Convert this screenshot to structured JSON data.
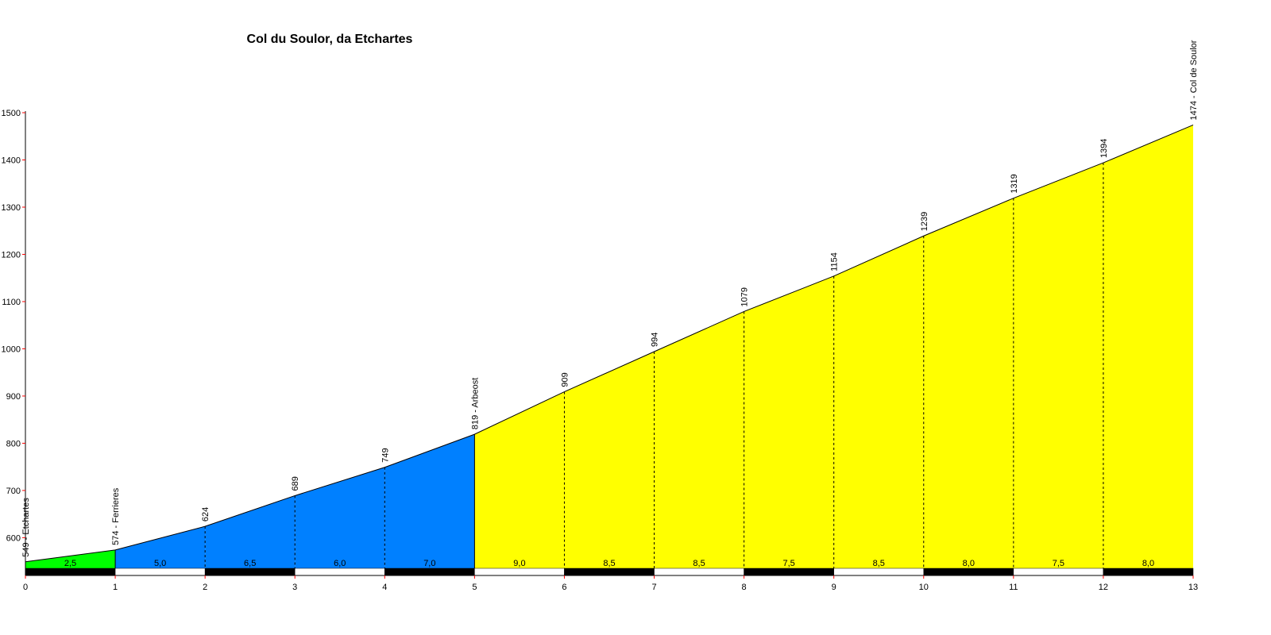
{
  "chart_data": {
    "type": "area",
    "title": "Col du Soulor, da Etchartes",
    "xlabel": "",
    "ylabel": "",
    "xlim": [
      0,
      13
    ],
    "ylim": [
      520,
      1500
    ],
    "x_ticks": [
      0,
      1,
      2,
      3,
      4,
      5,
      6,
      7,
      8,
      9,
      10,
      11,
      12,
      13
    ],
    "y_ticks": [
      600,
      700,
      800,
      900,
      1000,
      1100,
      1200,
      1300,
      1400,
      1500
    ],
    "grid": false,
    "legend": "none",
    "x": [
      0,
      1,
      2,
      3,
      4,
      5,
      6,
      7,
      8,
      9,
      10,
      11,
      12,
      13
    ],
    "y": [
      549,
      574,
      624,
      689,
      749,
      819,
      909,
      994,
      1079,
      1154,
      1239,
      1319,
      1394,
      1474
    ],
    "point_labels": [
      "549 - Etchartes",
      "574 - Ferrieres",
      "624",
      "689",
      "749",
      "819 - Arbeost",
      "909",
      "994",
      "1079",
      "1154",
      "1239",
      "1319",
      "1394",
      "1474 - Col de Soulor"
    ],
    "segment_gradients": [
      "2,5",
      "5,0",
      "6,5",
      "6,0",
      "7,0",
      "9,0",
      "8,5",
      "8,5",
      "7,5",
      "8,5",
      "8,0",
      "7,5",
      "8,0"
    ],
    "segment_colors": [
      "#00ff00",
      "#0080ff",
      "#0080ff",
      "#0080ff",
      "#0080ff",
      "#ffff00",
      "#ffff00",
      "#ffff00",
      "#ffff00",
      "#ffff00",
      "#ffff00",
      "#ffff00",
      "#ffff00"
    ],
    "axis_tick_color": "#ff0000",
    "line_color": "#000000"
  }
}
